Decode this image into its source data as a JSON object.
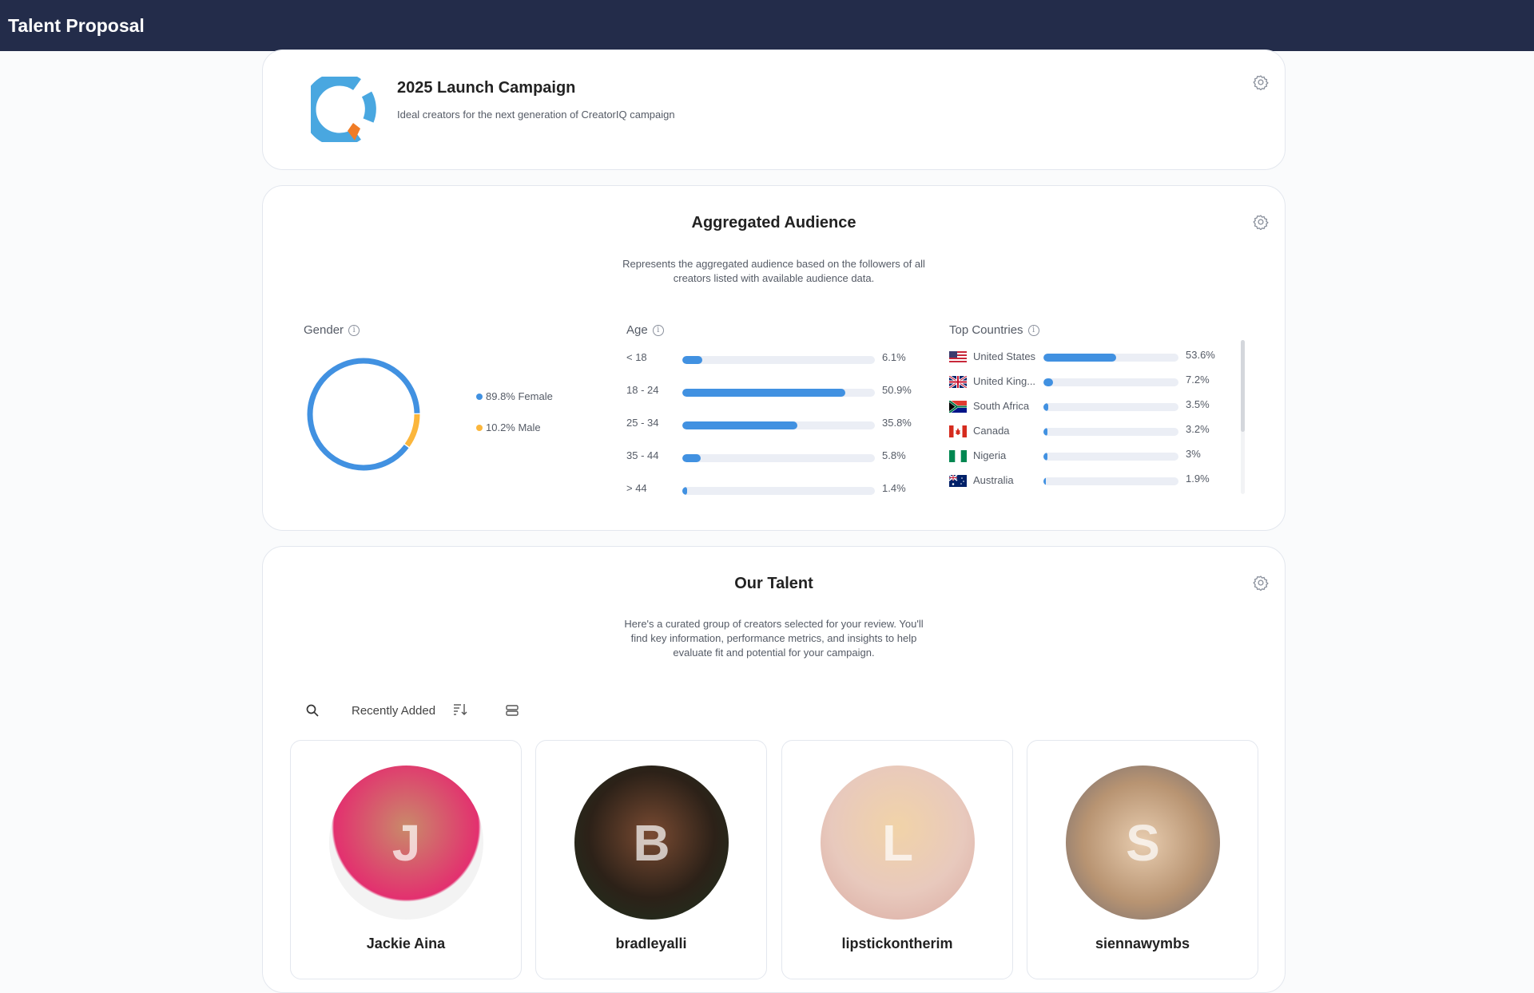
{
  "header": {
    "title": "Talent Proposal"
  },
  "campaign": {
    "title": "2025 Launch Campaign",
    "subtitle": "Ideal creators for the next generation of CreatorIQ campaign",
    "settings_icon": "gear-icon"
  },
  "audience": {
    "title": "Aggregated Audience",
    "description_lines": [
      "Represents the aggregated audience based on the followers of all",
      "creators listed with available audience data."
    ],
    "gender": {
      "label": "Gender",
      "segments": [
        {
          "label": "89.8% Female",
          "value": 89.8,
          "color": "#4191e1"
        },
        {
          "label": "10.2% Male",
          "value": 10.2,
          "color": "#fbb63c"
        }
      ]
    },
    "age": {
      "label": "Age",
      "scale_max": 60,
      "rows": [
        {
          "label": "< 18",
          "value": 6.1,
          "text": "6.1%"
        },
        {
          "label": "18 - 24",
          "value": 50.9,
          "text": "50.9%"
        },
        {
          "label": "25 - 34",
          "value": 35.8,
          "text": "35.8%"
        },
        {
          "label": "35 - 44",
          "value": 5.8,
          "text": "5.8%"
        },
        {
          "label": "> 44",
          "value": 1.4,
          "text": "1.4%"
        }
      ]
    },
    "countries": {
      "label": "Top Countries",
      "rows": [
        {
          "name": "United States",
          "flag": "us",
          "value": 53.6,
          "text": "53.6%"
        },
        {
          "name": "United King...",
          "flag": "gb",
          "value": 7.2,
          "text": "7.2%"
        },
        {
          "name": "South Africa",
          "flag": "za",
          "value": 3.5,
          "text": "3.5%"
        },
        {
          "name": "Canada",
          "flag": "ca",
          "value": 3.2,
          "text": "3.2%"
        },
        {
          "name": "Nigeria",
          "flag": "ng",
          "value": 3,
          "text": "3%"
        },
        {
          "name": "Australia",
          "flag": "au",
          "value": 1.9,
          "text": "1.9%"
        }
      ]
    }
  },
  "talent": {
    "title": "Our Talent",
    "description_lines": [
      "Here's a curated group of creators selected for your review. You'll",
      "find key information, performance metrics, and insights to help",
      "evaluate fit and potential for your campaign."
    ],
    "sort_label": "Recently Added",
    "creators": [
      {
        "name": "Jackie Aina",
        "initial": "J"
      },
      {
        "name": "bradleyalli",
        "initial": "B"
      },
      {
        "name": "lipstickontherim",
        "initial": "L"
      },
      {
        "name": "siennawymbs",
        "initial": "S"
      }
    ]
  },
  "colors": {
    "header": "#232c4a",
    "accent": "#4191e1",
    "male": "#fbb63c"
  }
}
